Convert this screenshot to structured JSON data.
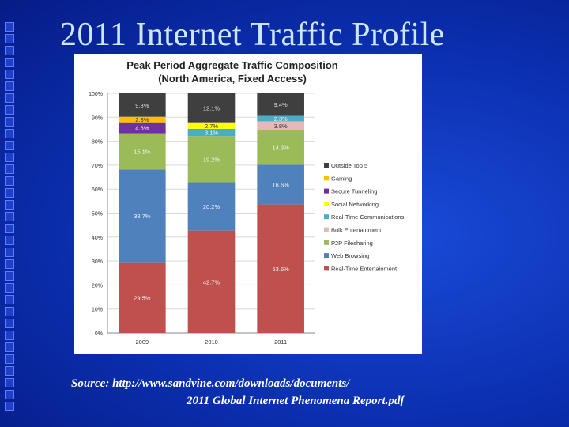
{
  "slide": {
    "title": "2011 Internet Traffic Profile",
    "source_line1": "Source: http://www.sandvine.com/downloads/documents/",
    "source_line2": "2011 Global Internet Phenomena Report.pdf"
  },
  "colors": {
    "background": "#0b2fb0",
    "title": "#cfe6ff",
    "Outside Top 5": "#3f3f3f",
    "Gaming": "#ffc000",
    "Secure Tunneling": "#7030a0",
    "Social Networking": "#ffff00",
    "Real-Time Communications": "#4bacc6",
    "Bulk Entertainment": "#e6b9b8",
    "P2P Filesharing": "#9bbb59",
    "Web Browsing": "#4f81bd",
    "Real-Time Entertainment": "#c0504d"
  },
  "chart_data": {
    "type": "bar",
    "stacked": true,
    "title": "Peak Period Aggregate Traffic Composition",
    "subtitle": "(North America, Fixed Access)",
    "xlabel": "",
    "ylabel": "",
    "ylim": [
      0,
      100
    ],
    "y_ticks": [
      "0%",
      "10%",
      "20%",
      "30%",
      "40%",
      "50%",
      "60%",
      "70%",
      "80%",
      "90%",
      "100%"
    ],
    "categories": [
      "2009",
      "2010",
      "2011"
    ],
    "legend_position": "right",
    "series": [
      {
        "name": "Real-Time Entertainment",
        "values": [
          29.5,
          42.7,
          53.6
        ],
        "labels": [
          "29.5%",
          "42.7%",
          "53.6%"
        ]
      },
      {
        "name": "Web Browsing",
        "values": [
          38.7,
          20.2,
          16.6
        ],
        "labels": [
          "38.7%",
          "20.2%",
          "16.6%"
        ]
      },
      {
        "name": "P2P Filesharing",
        "values": [
          15.1,
          19.2,
          14.3
        ],
        "labels": [
          "15.1%",
          "19.2%",
          "14.3%"
        ]
      },
      {
        "name": "Bulk Entertainment",
        "values": [
          0,
          0,
          3.8
        ],
        "labels": [
          "",
          "",
          "3.8%"
        ]
      },
      {
        "name": "Real-Time Communications",
        "values": [
          0,
          3.1,
          2.3
        ],
        "labels": [
          "",
          "3.1%",
          "2.3%"
        ]
      },
      {
        "name": "Social Networking",
        "values": [
          0,
          2.7,
          0
        ],
        "labels": [
          "",
          "2.7%",
          ""
        ]
      },
      {
        "name": "Secure Tunneling",
        "values": [
          4.6,
          0,
          0
        ],
        "labels": [
          "4.6%",
          "",
          ""
        ]
      },
      {
        "name": "Gaming",
        "values": [
          2.3,
          0,
          0
        ],
        "labels": [
          "2.3%",
          "",
          ""
        ]
      },
      {
        "name": "Outside Top 5",
        "values": [
          9.8,
          12.1,
          9.4
        ],
        "labels": [
          "9.8%",
          "12.1%",
          "9.4%"
        ]
      }
    ],
    "legend_order": [
      "Outside Top 5",
      "Gaming",
      "Secure Tunneling",
      "Social Networking",
      "Real-Time Communications",
      "Bulk Entertainment",
      "P2P Filesharing",
      "Web Browsing",
      "Real-Time Entertainment"
    ]
  }
}
